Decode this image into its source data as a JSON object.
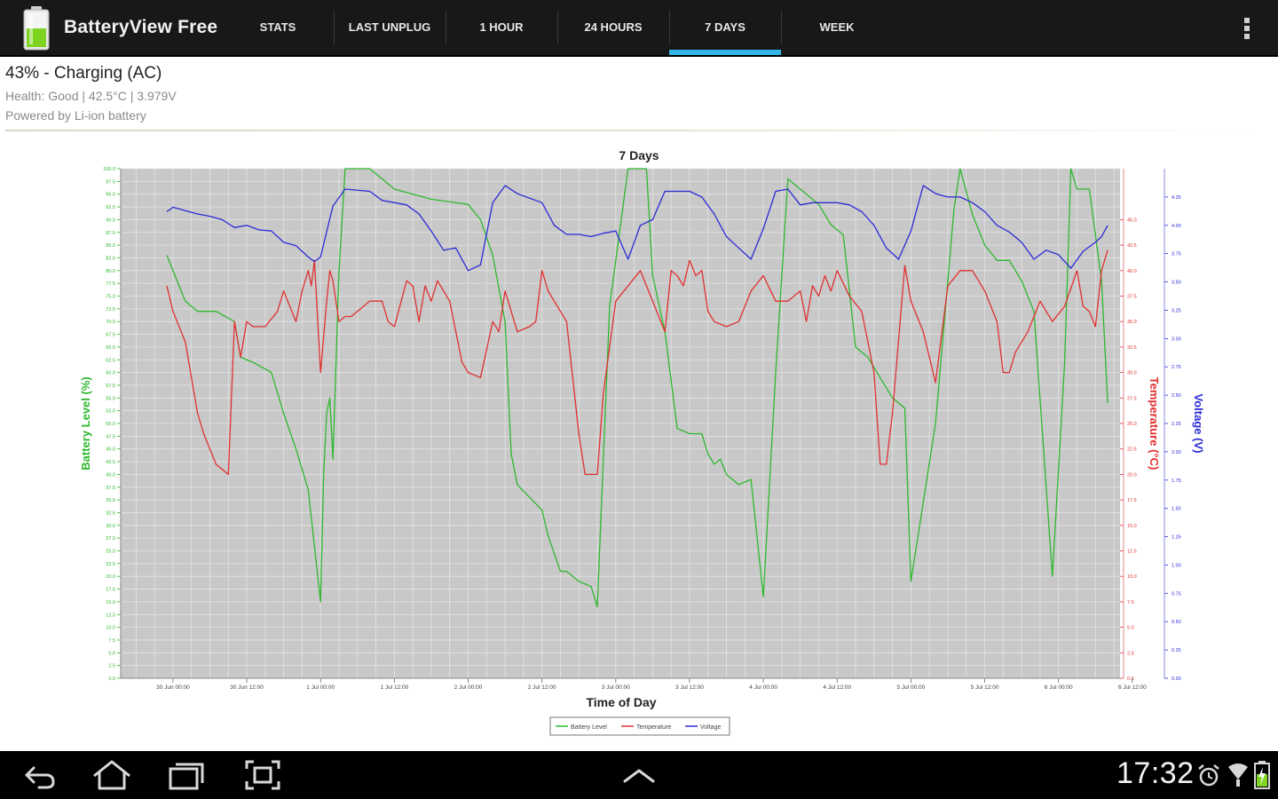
{
  "app": {
    "title": "BatteryView Free"
  },
  "tabs": [
    {
      "label": "STATS",
      "active": false
    },
    {
      "label": "LAST UNPLUG",
      "active": false
    },
    {
      "label": "1 HOUR",
      "active": false
    },
    {
      "label": "24 HOURS",
      "active": false
    },
    {
      "label": "7 DAYS",
      "active": true
    },
    {
      "label": "WEEK",
      "active": false
    }
  ],
  "status": {
    "main": "43% - Charging (AC)",
    "health": "Health: Good | 42.5°C | 3.979V",
    "powered": "Powered by Li-ion battery"
  },
  "colors": {
    "accent": "#33b5e5",
    "battery": "#2eb82e",
    "temperature": "#e03030",
    "voltage": "#2b2bd6",
    "plot_bg": "#c8c8c8"
  },
  "chart_data": {
    "type": "line",
    "title": "7 Days",
    "xlabel": "Time of Day",
    "ylabel_left": "Battery Level (%)",
    "ylabel_right_1": "Temperature (°C)",
    "ylabel_right_2": "Voltage (V)",
    "x_ticks": [
      "30 Jun 00:00",
      "30 Jun 12:00",
      "1 Jul 00:00",
      "1 Jul 12:00",
      "2 Jul 00:00",
      "2 Jul 12:00",
      "3 Jul 00:00",
      "3 Jul 12:00",
      "4 Jul 00:00",
      "4 Jul 12:00",
      "5 Jul 00:00",
      "5 Jul 12:00",
      "6 Jul 00:00",
      "6 Jul 12:00"
    ],
    "x_range_hours": [
      -8.5,
      154
    ],
    "battery_ylim": [
      0,
      100
    ],
    "temperature_ylim": [
      0,
      50
    ],
    "temperature_ticks": [
      0,
      2.5,
      5,
      7.5,
      10,
      12.5,
      15,
      17.5,
      20,
      22.5,
      25,
      27.5,
      30,
      32.5,
      35,
      37.5,
      40,
      42.5,
      45
    ],
    "voltage_ylim": [
      0,
      4.5
    ],
    "voltage_ticks": [
      0,
      0.25,
      0.5,
      0.75,
      1,
      1.25,
      1.5,
      1.75,
      2,
      2.25,
      2.5,
      2.75,
      3,
      3.25,
      3.5,
      3.75,
      4,
      4.25
    ],
    "legend": [
      "Battery Level",
      "Temperature",
      "Voltage"
    ],
    "legend_placement": "bottom-center",
    "grid": true,
    "series": [
      {
        "name": "Battery Level",
        "color": "#2eb82e",
        "axis": "battery",
        "x": [
          -1,
          0,
          2,
          4,
          7,
          10,
          11,
          13,
          16,
          18,
          20,
          22,
          24,
          24.5,
          25,
          25.5,
          26,
          27,
          28,
          32,
          36,
          42,
          48,
          50,
          52,
          54,
          55,
          56,
          60,
          61,
          63,
          64,
          66,
          68,
          69,
          71,
          74,
          77,
          78,
          80,
          82,
          84,
          86,
          87,
          88,
          89,
          90,
          92,
          94,
          96,
          98,
          100,
          102,
          104,
          105,
          107,
          109,
          111,
          113,
          117,
          119,
          120,
          124,
          127,
          128,
          130,
          132,
          134,
          136,
          138,
          140,
          143,
          145,
          146,
          147,
          149,
          151,
          152
        ],
        "y": [
          83,
          80,
          74,
          72,
          72,
          70,
          63,
          62,
          60,
          52,
          45,
          37,
          15,
          40,
          52,
          55,
          43,
          80,
          100,
          100,
          96,
          94,
          93,
          90,
          83,
          70,
          44,
          38,
          33,
          28,
          21,
          21,
          19,
          18,
          14,
          73,
          100,
          100,
          79,
          68,
          49,
          48,
          48,
          44,
          42,
          43,
          40,
          38,
          39,
          16,
          60,
          98,
          96,
          94,
          93,
          89,
          87,
          65,
          63,
          55,
          53,
          19,
          50,
          92,
          100,
          91,
          85,
          82,
          82,
          78,
          72,
          20,
          62,
          100,
          96,
          96,
          78,
          54
        ]
      },
      {
        "name": "Temperature",
        "color": "#e03030",
        "axis": "temperature",
        "x": [
          -1,
          0,
          2,
          4,
          5,
          7,
          9,
          10,
          11,
          12,
          13,
          15,
          17,
          18,
          20,
          21,
          22,
          22.5,
          23,
          24,
          25,
          25.5,
          26,
          27,
          28,
          29,
          32,
          34,
          35,
          36,
          38,
          39,
          40,
          41,
          42,
          43,
          45,
          47,
          48,
          50,
          52,
          53,
          54,
          55,
          56,
          58,
          59,
          60,
          61,
          64,
          66,
          67,
          69,
          70,
          72,
          76,
          78,
          80,
          81,
          82,
          83,
          84,
          85,
          86,
          87,
          88,
          90,
          92,
          94,
          96,
          98,
          100,
          102,
          103,
          104,
          105,
          106,
          107,
          108,
          110,
          112,
          114,
          115,
          116,
          117,
          119,
          120,
          122,
          124,
          126,
          128,
          130,
          132,
          134,
          135,
          136,
          137,
          139,
          141,
          143,
          145,
          147,
          148,
          149,
          150,
          151,
          152
        ],
        "y": [
          38.5,
          36,
          33,
          26,
          24,
          21,
          20,
          35,
          31.5,
          35,
          34.5,
          34.5,
          36,
          38,
          35,
          38,
          40,
          38.5,
          41,
          30,
          37,
          40,
          39,
          35,
          35.5,
          35.5,
          37,
          37,
          35,
          34.5,
          39,
          38.5,
          35,
          38.5,
          37,
          39,
          37,
          31,
          30,
          29.5,
          35,
          34,
          38,
          36,
          34,
          34.5,
          35,
          40,
          38,
          35,
          24,
          20,
          20,
          28,
          37,
          40,
          37,
          34,
          40,
          39.5,
          38.5,
          41,
          39.5,
          40,
          36,
          35,
          34.5,
          35,
          38,
          39.5,
          37,
          37,
          38,
          35,
          38.5,
          37.5,
          39.5,
          38,
          40,
          37.5,
          36,
          30,
          21,
          21,
          26,
          40.5,
          37,
          34,
          29,
          38.5,
          40,
          40,
          38,
          35,
          30,
          30,
          32,
          34,
          37,
          35,
          36.5,
          40,
          36.5,
          36,
          34.5,
          40,
          42
        ]
      },
      {
        "name": "Voltage",
        "color": "#2b2bd6",
        "axis": "voltage",
        "x": [
          -1,
          0,
          2,
          4,
          6,
          8,
          10,
          12,
          14,
          16,
          18,
          20,
          21,
          22,
          23,
          24,
          26,
          28,
          32,
          34,
          38,
          40,
          42,
          44,
          46,
          48,
          50,
          52,
          54,
          56,
          60,
          62,
          64,
          66,
          68,
          70,
          72,
          74,
          76,
          78,
          80,
          82,
          84,
          86,
          88,
          90,
          92,
          94,
          96,
          98,
          100,
          102,
          104,
          106,
          108,
          110,
          112,
          114,
          116,
          118,
          120,
          122,
          124,
          126,
          128,
          130,
          132,
          134,
          136,
          138,
          140,
          142,
          144,
          146,
          148,
          150,
          151,
          152
        ],
        "y": [
          4.12,
          4.16,
          4.13,
          4.1,
          4.08,
          4.05,
          3.98,
          4.0,
          3.96,
          3.95,
          3.85,
          3.82,
          3.77,
          3.72,
          3.68,
          3.72,
          4.17,
          4.32,
          4.3,
          4.22,
          4.18,
          4.1,
          3.95,
          3.78,
          3.8,
          3.6,
          3.65,
          4.2,
          4.35,
          4.28,
          4.2,
          4.0,
          3.92,
          3.92,
          3.9,
          3.93,
          3.95,
          3.7,
          4.0,
          4.05,
          4.3,
          4.3,
          4.3,
          4.25,
          4.1,
          3.9,
          3.8,
          3.7,
          3.97,
          4.3,
          4.32,
          4.18,
          4.2,
          4.2,
          4.2,
          4.18,
          4.12,
          4.0,
          3.8,
          3.7,
          3.95,
          4.35,
          4.28,
          4.25,
          4.25,
          4.2,
          4.12,
          4.0,
          3.94,
          3.85,
          3.7,
          3.78,
          3.74,
          3.62,
          3.77,
          3.85,
          3.9,
          4.0
        ]
      }
    ]
  },
  "nav": {
    "clock": "17:32"
  }
}
